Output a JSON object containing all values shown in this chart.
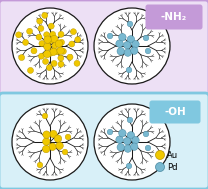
{
  "fig_width": 2.08,
  "fig_height": 1.89,
  "dpi": 100,
  "bg_color": "#ffffff",
  "top_box_color": "#c49ad8",
  "top_box_fill": "#ede0f5",
  "bottom_box_color": "#80c8e0",
  "bottom_box_fill": "#d8f0f8",
  "au_color": "#f0c800",
  "au_edge_color": "#b89600",
  "pd_color": "#78b8d0",
  "pd_edge_color": "#4888a0",
  "dendrimer_color": "#1a1a1a",
  "label_nh2": "-NH₂",
  "label_oh": "-OH",
  "label_au": "Au",
  "label_pd": "Pd",
  "label_fontsize": 7.5,
  "legend_fontsize": 6.0,
  "label_box_nh2": "#c49ad8",
  "label_box_oh": "#80c8e0"
}
